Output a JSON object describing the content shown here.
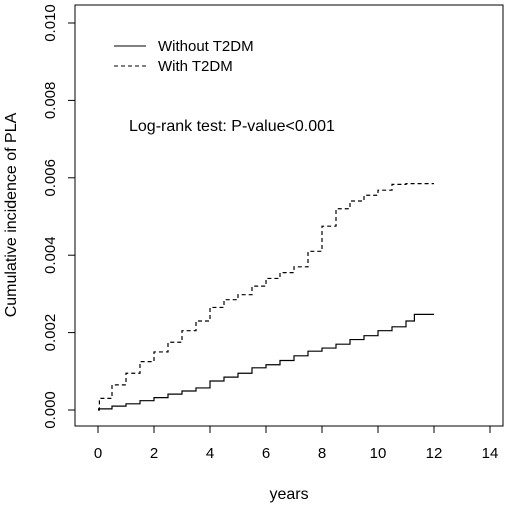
{
  "chart_data": {
    "type": "line",
    "xlabel": "years",
    "ylabel": "Cumulative incidence of PLA",
    "xlim": [
      0,
      14
    ],
    "ylim": [
      0,
      0.01
    ],
    "x_ticks": [
      0,
      2,
      4,
      6,
      8,
      10,
      12,
      14
    ],
    "y_ticks": [
      0,
      0.002,
      0.004,
      0.006,
      0.008,
      0.01
    ],
    "x_tick_labels": [
      "0",
      "2",
      "4",
      "6",
      "8",
      "10",
      "12",
      "14"
    ],
    "y_tick_labels": [
      "0.000",
      "0.002",
      "0.004",
      "0.006",
      "0.008",
      "0.010"
    ],
    "grid": false,
    "legend_position": "top-left",
    "annotation": "Log-rank test: P-value<0.001",
    "series": [
      {
        "name": "Without T2DM",
        "line_style": "solid",
        "color": "#000000",
        "x": [
          0,
          0.5,
          1,
          1.5,
          2,
          2.5,
          3,
          3.5,
          4,
          4.5,
          5,
          5.5,
          6,
          6.5,
          7,
          7.5,
          8,
          8.5,
          9,
          9.5,
          10,
          10.5,
          11,
          11.3,
          12
        ],
        "y": [
          3e-05,
          0.0001,
          0.00016,
          0.00024,
          0.00032,
          0.00041,
          0.00049,
          0.00057,
          0.00075,
          0.00085,
          0.00095,
          0.00109,
          0.00117,
          0.00128,
          0.0014,
          0.00152,
          0.0016,
          0.0017,
          0.00182,
          0.00192,
          0.00205,
          0.00215,
          0.0023,
          0.00247,
          0.00247
        ]
      },
      {
        "name": "With T2DM",
        "line_style": "dashed",
        "color": "#000000",
        "x": [
          0,
          0.05,
          0.5,
          1,
          1.5,
          2,
          2.5,
          3,
          3.5,
          4,
          4.5,
          5,
          5.5,
          6,
          6.5,
          7,
          7.5,
          8,
          8.5,
          9,
          9.5,
          10,
          10.5,
          11,
          12
        ],
        "y": [
          0.0,
          0.0003,
          0.00065,
          0.00095,
          0.00125,
          0.0015,
          0.00175,
          0.00205,
          0.0023,
          0.00265,
          0.00285,
          0.00298,
          0.0032,
          0.0034,
          0.00355,
          0.0037,
          0.0041,
          0.00475,
          0.0052,
          0.0054,
          0.00555,
          0.00568,
          0.00583,
          0.00585,
          0.00585
        ]
      }
    ]
  }
}
